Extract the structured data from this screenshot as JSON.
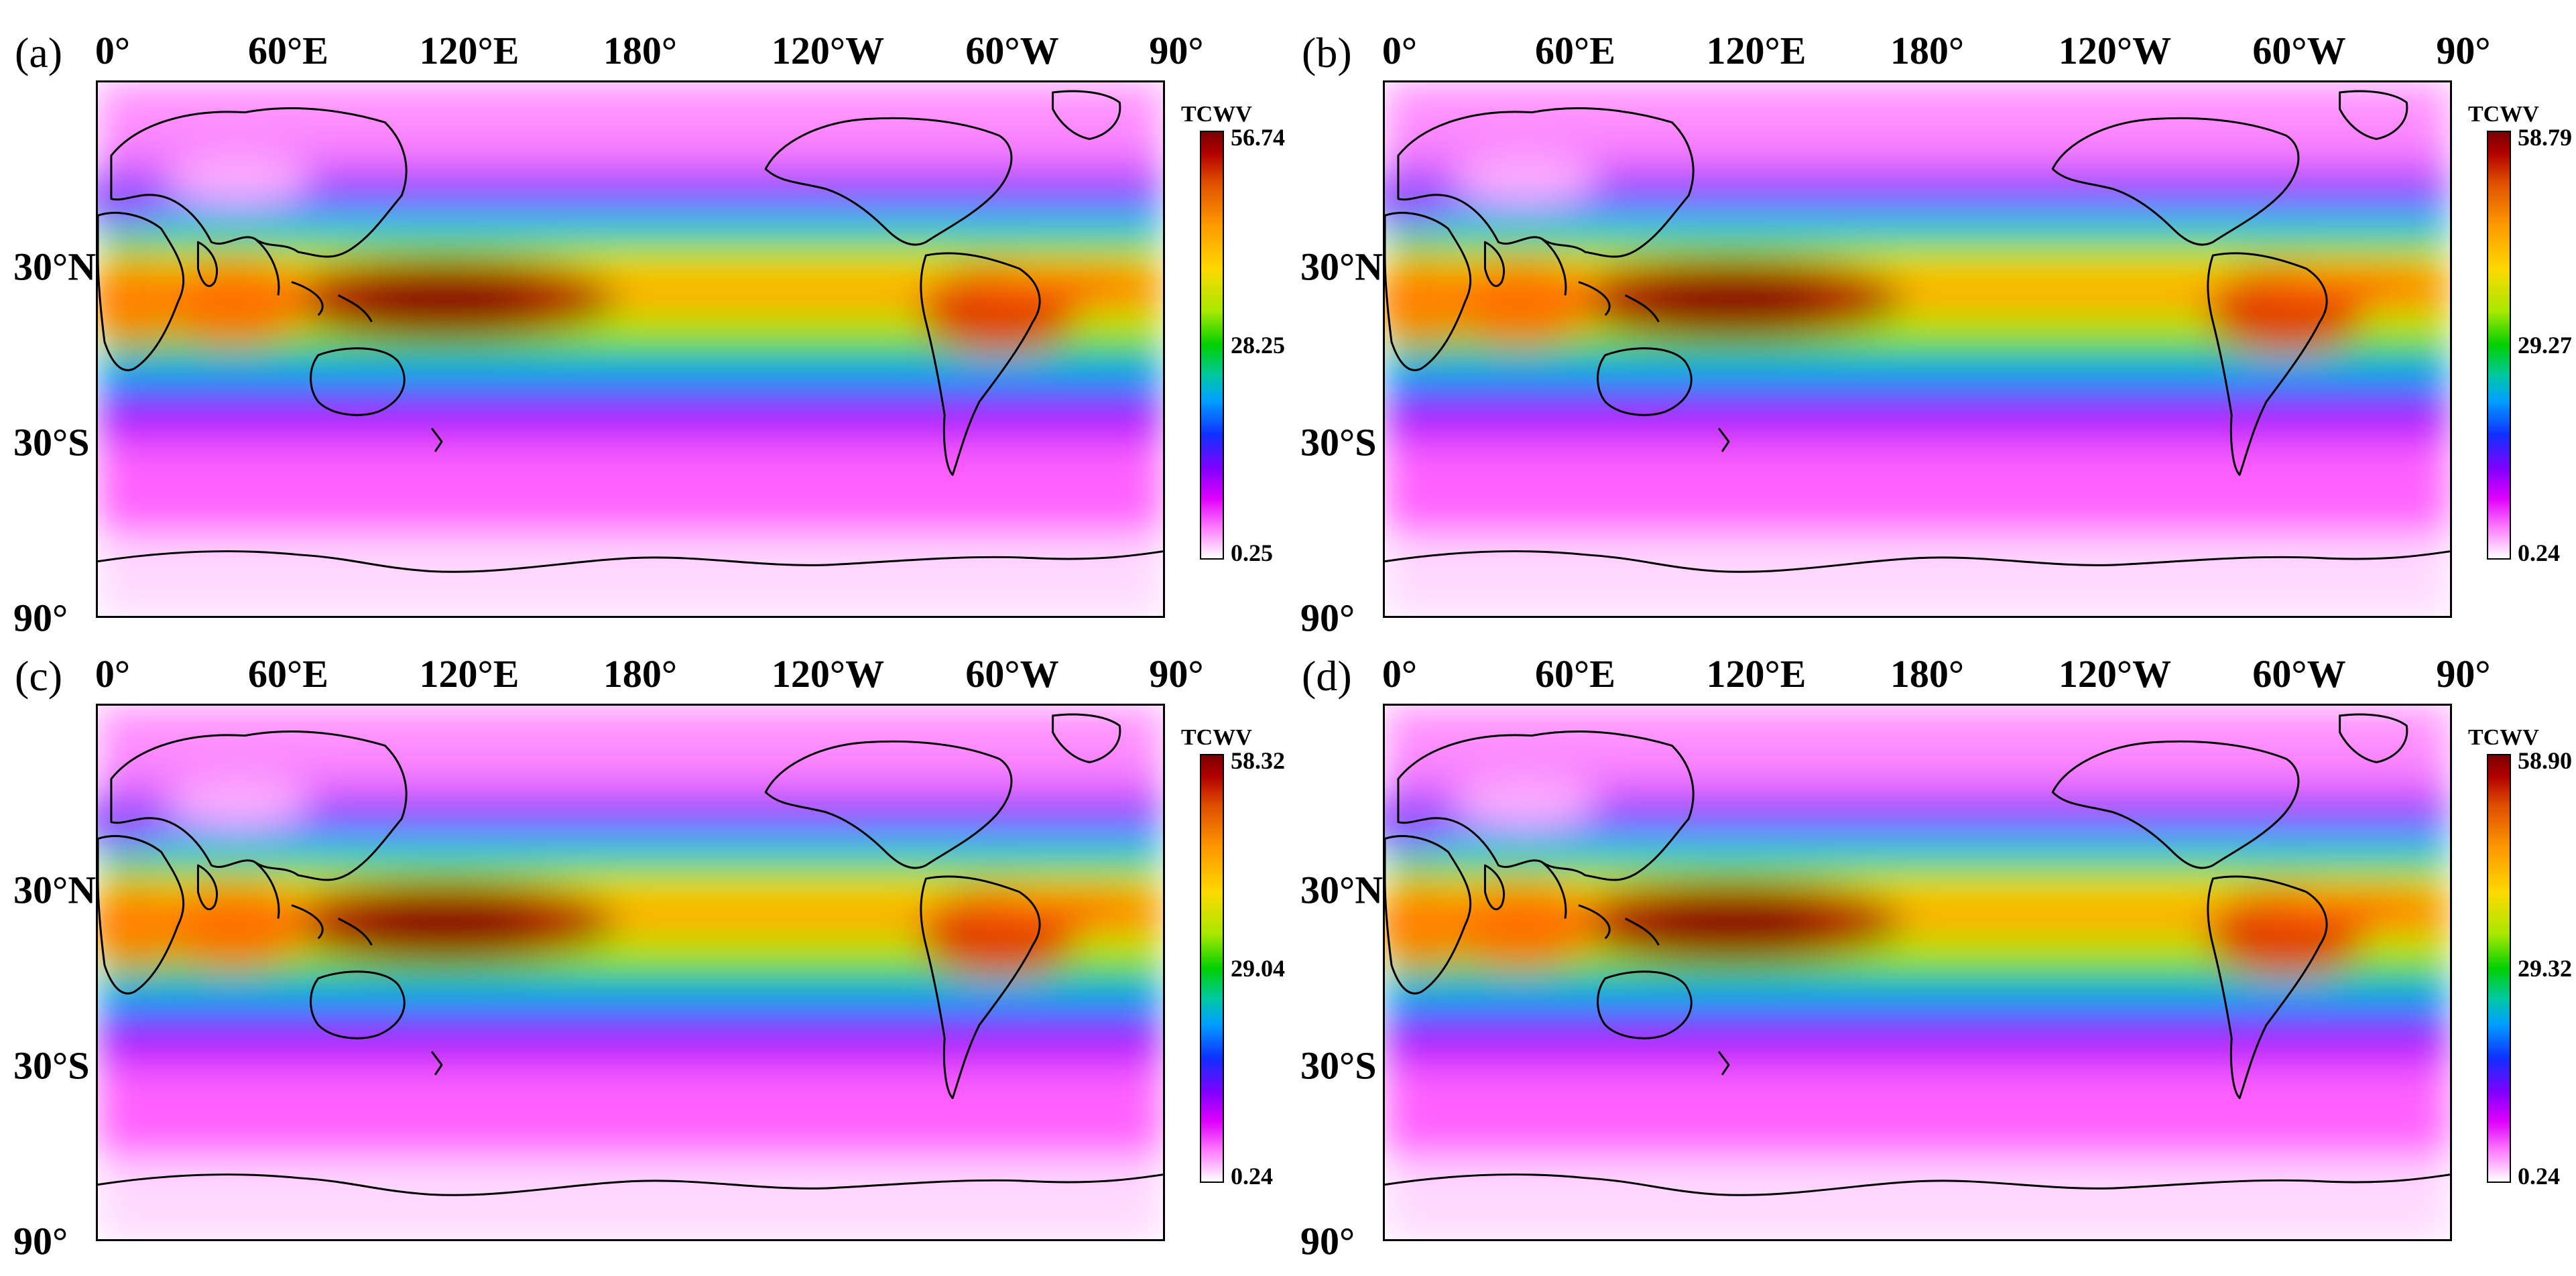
{
  "figure": {
    "lon_labels": [
      "0°",
      "60°E",
      "120°E",
      "180°",
      "120°W",
      "60°W",
      "90°"
    ],
    "lat_labels": [
      "30°N",
      "30°S",
      "90°"
    ],
    "colorbar_title": "TCWV",
    "colors": {
      "max": "#7a0000",
      "high": "#ff9a00",
      "mid": "#00d000",
      "low": "#1030ff",
      "lower": "#e000ff",
      "min": "#ffffff",
      "coast": "#000000"
    },
    "panels": [
      {
        "label": "(a)",
        "max": "56.74",
        "mid": "28.25",
        "min": "0.25"
      },
      {
        "label": "(b)",
        "max": "58.79",
        "mid": "29.27",
        "min": "0.24"
      },
      {
        "label": "(c)",
        "max": "58.32",
        "mid": "29.04",
        "min": "0.24"
      },
      {
        "label": "(d)",
        "max": "58.90",
        "mid": "29.32",
        "min": "0.24"
      }
    ]
  }
}
